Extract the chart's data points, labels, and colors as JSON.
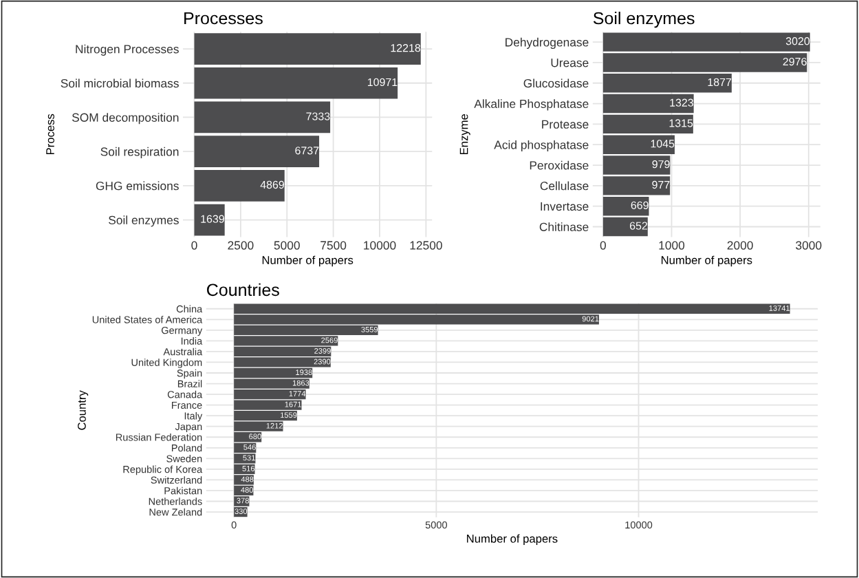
{
  "chart_data": [
    {
      "type": "bar",
      "orientation": "horizontal",
      "title": "Processes",
      "xlabel": "Number of papers",
      "ylabel": "Process",
      "categories": [
        "Nitrogen Processes",
        "Soil microbial biomass",
        "SOM decomposition",
        "Soil respiration",
        "GHG emissions",
        "Soil enzymes"
      ],
      "values": [
        12218,
        10971,
        7333,
        6737,
        4869,
        1639
      ],
      "color": "#4d4d4f",
      "xlim": [
        -611,
        12829
      ],
      "xticks": [
        0,
        2500,
        5000,
        7500,
        10000,
        12500
      ],
      "grid": true,
      "data_labels": true
    },
    {
      "type": "bar",
      "orientation": "horizontal",
      "title": "Soil enzymes",
      "xlabel": "Number of papers",
      "ylabel": "Enzyme",
      "categories": [
        "Dehydrogenase",
        "Urease",
        "Glucosidase",
        "Alkaline Phosphatase",
        "Protease",
        "Acid phosphatase",
        "Peroxidase",
        "Cellulase",
        "Invertase",
        "Chitinase"
      ],
      "values": [
        3020,
        2976,
        1877,
        1323,
        1315,
        1045,
        979,
        977,
        669,
        652
      ],
      "color": "#4d4d4f",
      "xlim": [
        -151,
        3171
      ],
      "xticks": [
        0,
        1000,
        2000,
        3000
      ],
      "grid": true,
      "data_labels": true
    },
    {
      "type": "bar",
      "orientation": "horizontal",
      "title": "Countries",
      "xlabel": "Number of papers",
      "ylabel": "Country",
      "categories": [
        "China",
        "United States of America",
        "Germany",
        "India",
        "Australia",
        "United Kingdom",
        "Spain",
        "Brazil",
        "Canada",
        "France",
        "Italy",
        "Japan",
        "Russian Federation",
        "Poland",
        "Sweden",
        "Republic of Korea",
        "Switzerland",
        "Pakistan",
        "Netherlands",
        "New Zeland"
      ],
      "values": [
        13741,
        9021,
        3559,
        2569,
        2399,
        2390,
        1938,
        1863,
        1774,
        1671,
        1559,
        1212,
        680,
        546,
        531,
        516,
        488,
        480,
        378,
        330
      ],
      "color": "#4d4d4f",
      "xlim": [
        -687,
        14428
      ],
      "xticks": [
        0,
        5000,
        10000
      ],
      "grid": true,
      "data_labels": true
    }
  ]
}
